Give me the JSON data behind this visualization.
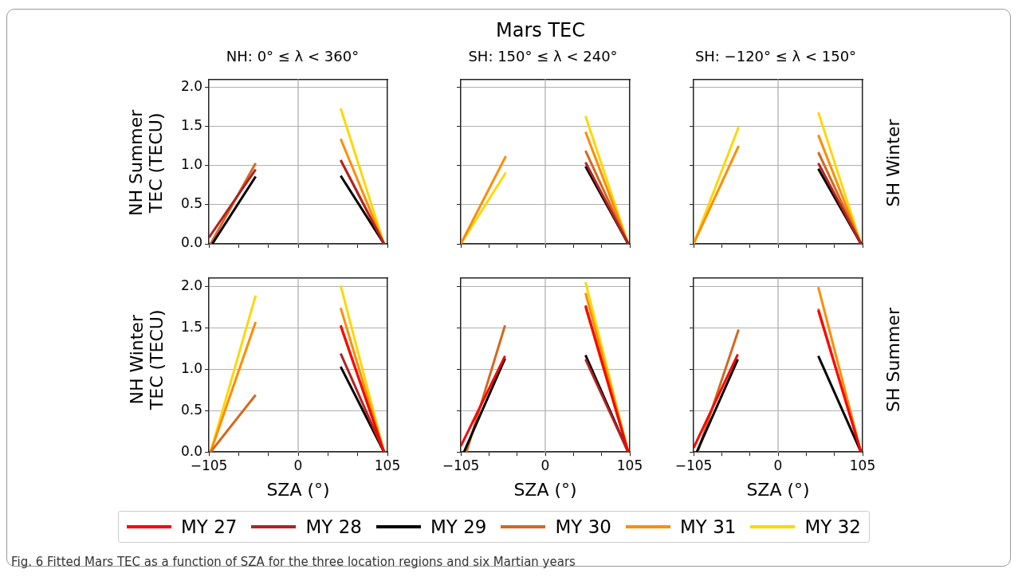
{
  "chart_data": [
    {
      "type": "line",
      "title": "NH: 0° ≤ λ < 360°",
      "ylabel": "NH Summer\nTEC (TECU)",
      "annotations": [
        "Mars TEC",
        "Fig. 6 Fitted Mars TEC as a function of SZA for the three location regions and six Martian years"
      ],
      "grid": "y",
      "tick_labels": "y",
      "xlim": [
        -105,
        105
      ],
      "xticks": [
        -105,
        -70,
        -35,
        0,
        35,
        70,
        105
      ],
      "ylim": [
        0,
        2.1
      ],
      "yticks": [
        {
          "value": 0,
          "label": "0.0"
        },
        {
          "value": 0.5,
          "label": "0.5"
        },
        {
          "value": 1,
          "label": "1.0"
        },
        {
          "value": 1.5,
          "label": "1.5"
        },
        {
          "value": 2,
          "label": "2.0"
        }
      ],
      "ref_lines": [
        {
          "axis": "x",
          "value": 0,
          "color": "#b0b0b0"
        }
      ],
      "series": [
        {
          "color": "#b22222",
          "x": [
            -105,
            -50,
            0,
            50,
            101
          ],
          "values": [
            0.08,
            0.95,
            null,
            1.07,
            0
          ]
        },
        {
          "color": "#000000",
          "x": [
            -101,
            -50,
            0,
            50,
            101
          ],
          "values": [
            0,
            0.86,
            null,
            0.87,
            0
          ]
        },
        {
          "color": "#d2691e",
          "x": [
            -103,
            -50,
            0,
            50,
            101
          ],
          "values": [
            0,
            1.03,
            null,
            1.07,
            0
          ]
        },
        {
          "color": "#ff8c00",
          "x": [
            50,
            101
          ],
          "values": [
            1.34,
            0
          ]
        },
        {
          "color": "#ffd700",
          "x": [
            50,
            101
          ],
          "values": [
            1.73,
            0
          ]
        }
      ]
    },
    {
      "type": "line",
      "title": "SH: 150° ≤ λ < 240°",
      "grid": "y",
      "tick_labels": false,
      "xlim": [
        -105,
        105
      ],
      "xticks": [
        -105,
        -70,
        -35,
        0,
        35,
        70,
        105
      ],
      "ylim": [
        0,
        2.1
      ],
      "yticks": [
        0,
        0.5,
        1,
        1.5,
        2
      ],
      "ref_lines": [
        {
          "axis": "x",
          "value": 0,
          "color": "#b0b0b0"
        }
      ],
      "series": [
        {
          "color": "#b22222",
          "x": [
            50,
            103
          ],
          "values": [
            1.04,
            0
          ]
        },
        {
          "color": "#000000",
          "x": [
            50,
            103
          ],
          "values": [
            0.99,
            0
          ]
        },
        {
          "color": "#d2691e",
          "x": [
            50,
            103
          ],
          "values": [
            1.19,
            0
          ]
        },
        {
          "color": "#ff8c00",
          "x": [
            -105,
            -49,
            0,
            50,
            103
          ],
          "values": [
            0,
            1.12,
            null,
            1.43,
            0
          ]
        },
        {
          "color": "#ffd700",
          "x": [
            -105,
            -49,
            0,
            50,
            103
          ],
          "values": [
            0,
            0.91,
            null,
            1.63,
            0
          ]
        }
      ]
    },
    {
      "type": "line",
      "title": "SH: −120° ≤ λ < 150°",
      "y2label": "SH Winter",
      "grid": "y",
      "tick_labels": false,
      "xlim": [
        -105,
        105
      ],
      "xticks": [
        -105,
        -70,
        -35,
        0,
        35,
        70,
        105
      ],
      "ylim": [
        0,
        2.1
      ],
      "yticks": [
        0,
        0.5,
        1,
        1.5,
        2
      ],
      "ref_lines": [
        {
          "axis": "x",
          "value": 0,
          "color": "#b0b0b0"
        }
      ],
      "series": [
        {
          "color": "#b22222",
          "x": [
            50,
            103
          ],
          "values": [
            1.03,
            0
          ]
        },
        {
          "color": "#000000",
          "x": [
            50,
            103
          ],
          "values": [
            0.96,
            0
          ]
        },
        {
          "color": "#d2691e",
          "x": [
            50,
            103
          ],
          "values": [
            1.17,
            0
          ]
        },
        {
          "color": "#ff8c00",
          "x": [
            -105,
            -49,
            0,
            50,
            103
          ],
          "values": [
            0,
            1.25,
            null,
            1.39,
            0
          ]
        },
        {
          "color": "#ffd700",
          "x": [
            -105,
            -49,
            0,
            50,
            103
          ],
          "values": [
            0,
            1.49,
            null,
            1.68,
            0
          ]
        }
      ]
    },
    {
      "type": "line",
      "ylabel": "NH Winter\nTEC (TECU)",
      "xlabel": "SZA (°)",
      "legend": "bottom",
      "grid": "y",
      "xlim": [
        -105,
        105
      ],
      "xticks": [
        {
          "value": -105,
          "label": "−105"
        },
        {
          "value": -70,
          "label": null
        },
        {
          "value": -35,
          "label": null
        },
        0,
        {
          "value": 35,
          "label": null
        },
        {
          "value": 70,
          "label": null
        },
        105
      ],
      "ylim": [
        0,
        2.1
      ],
      "yticks": [
        {
          "value": 0,
          "label": "0.0"
        },
        {
          "value": 0.5,
          "label": "0.5"
        },
        {
          "value": 1,
          "label": "1.0"
        },
        {
          "value": 1.5,
          "label": "1.5"
        },
        {
          "value": 2,
          "label": "2.0"
        }
      ],
      "ref_lines": [
        {
          "axis": "x",
          "value": 0,
          "color": "#b0b0b0"
        }
      ],
      "series": [
        {
          "name": "MY 27",
          "color": "#ff0000",
          "x": [
            50,
            101
          ],
          "values": [
            1.53,
            0
          ]
        },
        {
          "name": "MY 28",
          "color": "#b22222",
          "x": [
            50,
            101
          ],
          "values": [
            1.19,
            0
          ]
        },
        {
          "name": "MY 29",
          "color": "#000000",
          "x": [
            50,
            101
          ],
          "values": [
            1.03,
            0
          ]
        },
        {
          "name": "MY 30",
          "color": "#d2691e",
          "x": [
            -103,
            -50,
            0,
            50,
            101
          ],
          "values": [
            0,
            0.69,
            null,
            1.52,
            0
          ]
        },
        {
          "name": "MY 31",
          "color": "#ff8c00",
          "x": [
            -103,
            -50,
            0,
            50,
            101
          ],
          "values": [
            0,
            1.57,
            null,
            1.74,
            0
          ]
        },
        {
          "name": "MY 32",
          "color": "#ffd700",
          "x": [
            -103,
            -50,
            0,
            50,
            101
          ],
          "values": [
            0,
            1.89,
            null,
            2.01,
            0
          ]
        }
      ]
    },
    {
      "type": "line",
      "xlabel": "SZA (°)",
      "grid": "y",
      "tick_labels": "x",
      "xlim": [
        -105,
        105
      ],
      "xticks": [
        {
          "value": -105,
          "label": "−105"
        },
        {
          "value": -70,
          "label": null
        },
        {
          "value": -35,
          "label": null
        },
        0,
        {
          "value": 35,
          "label": null
        },
        {
          "value": 70,
          "label": null
        },
        105
      ],
      "ylim": [
        0,
        2.1
      ],
      "yticks": [
        0,
        0.5,
        1,
        1.5,
        2
      ],
      "ref_lines": [
        {
          "axis": "x",
          "value": 0,
          "color": "#b0b0b0"
        }
      ],
      "series": [
        {
          "color": "#ff0000",
          "x": [
            -105,
            -50,
            0,
            50,
            103
          ],
          "values": [
            0.07,
            1.16,
            null,
            1.77,
            0
          ]
        },
        {
          "color": "#b22222",
          "x": [
            50,
            103
          ],
          "values": [
            1.12,
            0
          ]
        },
        {
          "color": "#000000",
          "x": [
            -101,
            -50,
            0,
            50,
            103
          ],
          "values": [
            0,
            1.13,
            null,
            1.17,
            0
          ]
        },
        {
          "color": "#d2691e",
          "x": [
            -98,
            -50,
            0,
            50,
            103
          ],
          "values": [
            0,
            1.53,
            null,
            1.75,
            0
          ]
        },
        {
          "color": "#ff8c00",
          "x": [
            50,
            103
          ],
          "values": [
            1.92,
            0
          ]
        },
        {
          "color": "#ffd700",
          "x": [
            50,
            103
          ],
          "values": [
            2.05,
            0
          ]
        }
      ]
    },
    {
      "type": "line",
      "xlabel": "SZA (°)",
      "y2label": "SH Summer",
      "grid": "y",
      "tick_labels": "x",
      "xlim": [
        -105,
        105
      ],
      "xticks": [
        {
          "value": -105,
          "label": "−105"
        },
        {
          "value": -70,
          "label": null
        },
        {
          "value": -35,
          "label": null
        },
        0,
        {
          "value": 35,
          "label": null
        },
        {
          "value": 70,
          "label": null
        },
        105
      ],
      "ylim": [
        0,
        2.1
      ],
      "yticks": [
        0,
        0.5,
        1,
        1.5,
        2
      ],
      "ref_lines": [
        {
          "axis": "x",
          "value": 0,
          "color": "#b0b0b0"
        }
      ],
      "series": [
        {
          "color": "#ff0000",
          "x": [
            -105,
            -50,
            0,
            50,
            103
          ],
          "values": [
            0.05,
            1.18,
            null,
            1.71,
            0
          ]
        },
        {
          "color": "#000000",
          "x": [
            -101,
            -50,
            0,
            50,
            103
          ],
          "values": [
            0,
            1.12,
            null,
            1.16,
            0
          ]
        },
        {
          "color": "#d2691e",
          "x": [
            -100,
            -49,
            0,
            50,
            103
          ],
          "values": [
            0,
            1.48,
            null,
            1.73,
            0
          ]
        },
        {
          "color": "#ff8c00",
          "x": [
            50,
            103
          ],
          "values": [
            1.99,
            0
          ]
        }
      ]
    }
  ]
}
